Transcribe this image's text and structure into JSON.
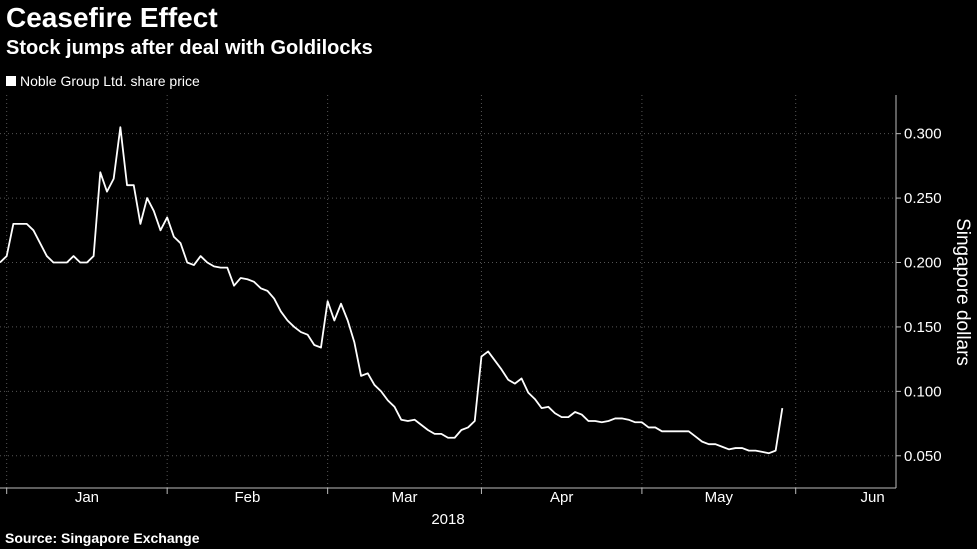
{
  "chart_data": {
    "type": "line",
    "title": "Ceasefire Effect",
    "subtitle": "Stock jumps after deal with Goldilocks",
    "legend": [
      "Noble Group Ltd. share price"
    ],
    "ylabel": "Singapore dollars",
    "xlabel": "2018",
    "source": "Source: Singapore Exchange",
    "ylim": [
      0.025,
      0.33
    ],
    "yticks": [
      0.05,
      0.1,
      0.15,
      0.2,
      0.25,
      0.3
    ],
    "ytick_labels": [
      "0.050",
      "0.100",
      "0.150",
      "0.200",
      "0.250",
      "0.300"
    ],
    "month_labels": [
      "Jan",
      "Feb",
      "Mar",
      "Apr",
      "May",
      "Jun"
    ],
    "x_range": [
      0,
      134
    ],
    "month_starts": [
      1,
      25,
      49,
      72,
      96,
      119
    ],
    "series": [
      {
        "name": "Noble Group Ltd. share price",
        "color": "#ffffff",
        "values": [
          0.2,
          0.205,
          0.23,
          0.23,
          0.23,
          0.225,
          0.215,
          0.205,
          0.2,
          0.2,
          0.2,
          0.205,
          0.2,
          0.2,
          0.205,
          0.27,
          0.255,
          0.265,
          0.305,
          0.26,
          0.26,
          0.23,
          0.25,
          0.24,
          0.225,
          0.235,
          0.22,
          0.215,
          0.2,
          0.198,
          0.205,
          0.2,
          0.197,
          0.196,
          0.196,
          0.182,
          0.188,
          0.187,
          0.185,
          0.18,
          0.178,
          0.172,
          0.162,
          0.155,
          0.15,
          0.146,
          0.144,
          0.136,
          0.134,
          0.17,
          0.155,
          0.168,
          0.155,
          0.138,
          0.112,
          0.114,
          0.105,
          0.1,
          0.093,
          0.088,
          0.078,
          0.077,
          0.078,
          0.074,
          0.07,
          0.067,
          0.067,
          0.064,
          0.064,
          0.07,
          0.072,
          0.077,
          0.127,
          0.131,
          0.124,
          0.117,
          0.109,
          0.106,
          0.11,
          0.099,
          0.094,
          0.087,
          0.088,
          0.083,
          0.08,
          0.08,
          0.084,
          0.082,
          0.077,
          0.077,
          0.076,
          0.077,
          0.079,
          0.079,
          0.078,
          0.076,
          0.076,
          0.072,
          0.072,
          0.069,
          0.069,
          0.069,
          0.069,
          0.069,
          0.065,
          0.061,
          0.059,
          0.059,
          0.057,
          0.055,
          0.056,
          0.056,
          0.054,
          0.054,
          0.053,
          0.052,
          0.054,
          0.087
        ]
      }
    ]
  }
}
